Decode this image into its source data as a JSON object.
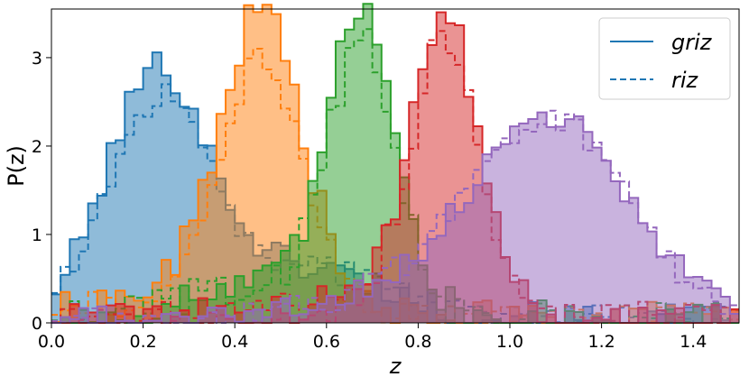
{
  "chart_data": {
    "type": "area",
    "xlabel": "z",
    "ylabel": "P(z)",
    "xlim": [
      0.0,
      1.5
    ],
    "ylim": [
      0,
      3.55
    ],
    "xticks": [
      "0.0",
      "0.2",
      "0.4",
      "0.6",
      "0.8",
      "1.0",
      "1.2",
      "1.4"
    ],
    "xtick_values": [
      0.0,
      0.2,
      0.4,
      0.6,
      0.8,
      1.0,
      1.2,
      1.4
    ],
    "yticks": [
      "0",
      "1",
      "2",
      "3"
    ],
    "ytick_values": [
      0,
      1,
      2,
      3
    ],
    "grid": false,
    "legend_position": "top-right",
    "legend": [
      {
        "label": "griz",
        "style": "solid"
      },
      {
        "label": "riz",
        "style": "dashed"
      }
    ],
    "colors": [
      "#1f77b4",
      "#ff7f0e",
      "#2ca02c",
      "#d62728",
      "#9467bd"
    ],
    "bin_width": 0.02,
    "series": [
      {
        "color": "#1f77b4",
        "mu": 0.23,
        "sigma": 0.11,
        "peak": 2.75,
        "peak_riz": 2.4,
        "tail": 0.6,
        "tail_center": 0.55
      },
      {
        "color": "#ff7f0e",
        "mu": 0.46,
        "sigma": 0.09,
        "peak": 3.3,
        "peak_riz": 2.7,
        "tail": 0.3,
        "tail_center": 0.3
      },
      {
        "color": "#2ca02c",
        "mu": 0.68,
        "sigma": 0.075,
        "peak": 3.4,
        "peak_riz": 3.0,
        "tail": 0.35,
        "tail_center": 0.45
      },
      {
        "color": "#d62728",
        "mu": 0.86,
        "sigma": 0.075,
        "peak": 3.3,
        "peak_riz": 3.05,
        "tail": 0.2,
        "tail_center": 0.7
      },
      {
        "color": "#9467bd",
        "mu": 1.09,
        "sigma": 0.17,
        "peak": 2.3,
        "peak_riz": 2.25,
        "tail": 0.25,
        "tail_center": 0.75
      }
    ]
  }
}
